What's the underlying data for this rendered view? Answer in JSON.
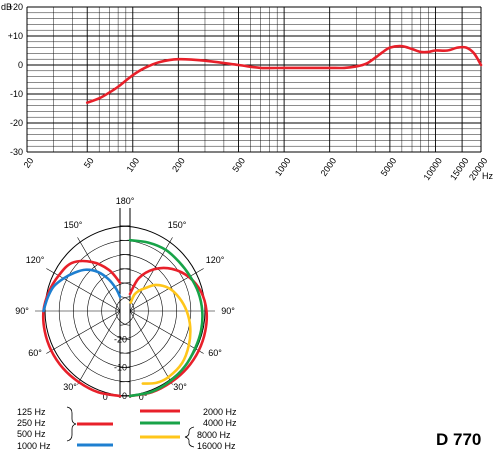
{
  "chart_data": [
    {
      "type": "line",
      "title": "",
      "xlabel": "Hz",
      "ylabel": "dB",
      "x_scale": "log",
      "xlim": [
        20,
        20000
      ],
      "ylim": [
        -30,
        20
      ],
      "x_tick_labels": [
        "20",
        "50",
        "100",
        "200",
        "500",
        "1000",
        "2000",
        "5000",
        "10000",
        "15000",
        "20000"
      ],
      "x_ticks": [
        20,
        50,
        100,
        200,
        500,
        1000,
        2000,
        5000,
        10000,
        15000,
        20000
      ],
      "y_ticks": [
        {
          "value": 20,
          "label": "+20"
        },
        {
          "value": 10,
          "label": "+10"
        },
        {
          "value": 0,
          "label": "0"
        },
        {
          "value": -10,
          "label": "-10"
        },
        {
          "value": -20,
          "label": "-20"
        },
        {
          "value": -30,
          "label": "-30"
        }
      ],
      "grid": true,
      "color": "#e8202a",
      "series": [
        {
          "x": [
            50,
            60,
            70,
            80,
            100,
            120,
            150,
            200,
            300,
            500,
            700,
            1000,
            1500,
            2000,
            2500,
            3000,
            3500,
            4000,
            4500,
            5000,
            6000,
            7000,
            8000,
            9000,
            10000,
            12000,
            14000,
            16000,
            18000,
            20000
          ],
          "y": [
            -13,
            -11.5,
            -9.5,
            -7.5,
            -3.5,
            -1,
            1,
            2,
            1.5,
            0,
            -1,
            -1,
            -1,
            -1,
            -1,
            -0.5,
            0.5,
            2.5,
            4.5,
            6,
            6.5,
            5.5,
            4.5,
            4.5,
            5,
            5,
            6,
            6,
            4,
            0
          ]
        }
      ]
    },
    {
      "type": "polar",
      "rlim": [
        -30,
        0
      ],
      "r_tick_labels": [
        "-20",
        "-10",
        "0"
      ],
      "angle_labels": {
        "top": "180°",
        "top_left": "150°",
        "top_right": "150°",
        "upper_left": "120°",
        "upper_right": "120°",
        "left": "90°",
        "right": "90°",
        "lower_left": "60°",
        "lower_right": "60°",
        "bottom_left": "30°",
        "bottom_right": "30°",
        "bottom_center_left": "0°",
        "bottom_center_right": "0°"
      },
      "series": [
        {
          "side": "left",
          "name_lines": [
            "125 Hz",
            "250 Hz",
            "500 Hz"
          ],
          "color": "#e8202a",
          "angles": [
            0,
            15,
            30,
            45,
            60,
            75,
            90,
            105,
            120,
            135,
            150,
            165,
            180
          ],
          "db": [
            0,
            -0.3,
            -1,
            -1.5,
            -2,
            -2.5,
            -3,
            -4,
            -5,
            -6,
            -10,
            -15,
            -20
          ]
        },
        {
          "side": "left",
          "name_lines": [
            "1000 Hz"
          ],
          "color": "#1e7fd0",
          "angles": [
            90,
            100,
            110,
            120,
            130,
            140,
            150,
            160,
            170,
            180
          ],
          "db": [
            -3,
            -4,
            -5,
            -7,
            -9,
            -11,
            -14,
            -18,
            -22,
            -25
          ]
        },
        {
          "side": "right",
          "name_lines": [
            "2000 Hz"
          ],
          "color": "#e8202a",
          "angles": [
            0,
            15,
            30,
            45,
            60,
            75,
            90,
            105,
            120,
            135,
            150,
            165,
            180
          ],
          "db": [
            0,
            -0.3,
            -1,
            -1.5,
            -2,
            -2.5,
            -3,
            -4,
            -6,
            -9,
            -13,
            -18,
            -24
          ]
        },
        {
          "side": "right",
          "name_lines": [
            "4000 Hz"
          ],
          "color": "#18a348",
          "angles": [
            0,
            15,
            30,
            45,
            60,
            75,
            90,
            105,
            120,
            135,
            150,
            165,
            180
          ],
          "db": [
            0,
            -0.5,
            -1.5,
            -2.5,
            -3.5,
            -4,
            -4.5,
            -5,
            -5.5,
            -5.5,
            -5,
            -5,
            -5
          ]
        },
        {
          "side": "right",
          "name_lines": [
            "8000 Hz",
            "16000 Hz"
          ],
          "color": "#ffc61a",
          "angles": [
            10,
            20,
            30,
            45,
            60,
            75,
            90,
            105,
            120,
            135,
            145,
            155,
            165,
            175
          ],
          "db": [
            -4,
            -3,
            -3,
            -4,
            -6,
            -8,
            -10,
            -12,
            -14,
            -17,
            -20,
            -22,
            -24,
            -27
          ]
        }
      ]
    }
  ],
  "model": "D 770"
}
